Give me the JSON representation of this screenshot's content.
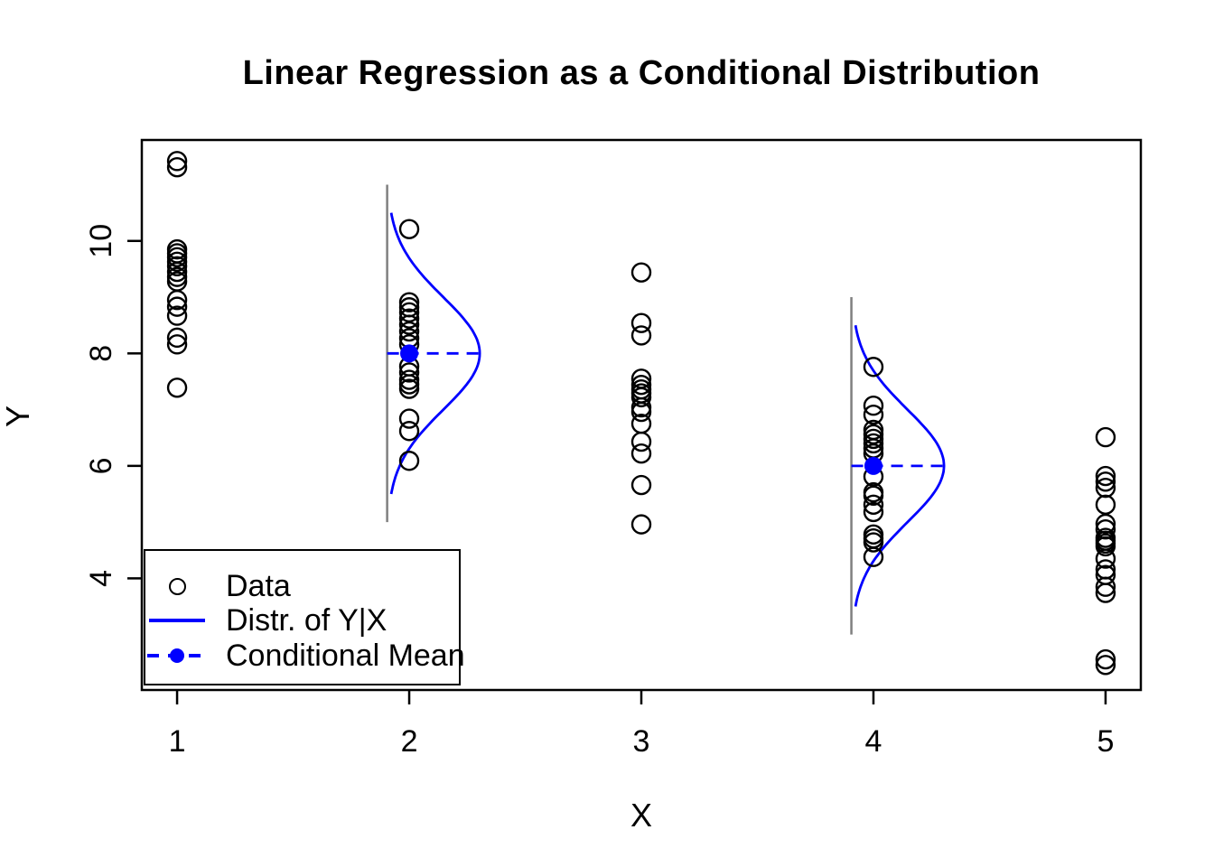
{
  "chart_data": {
    "type": "scatter",
    "title": "Linear Regression as a Conditional Distribution",
    "xlabel": "X",
    "ylabel": "Y",
    "x_ticks": [
      1,
      2,
      3,
      4,
      5
    ],
    "y_ticks": [
      4,
      6,
      8,
      10
    ],
    "xlim": [
      0.848,
      5.152
    ],
    "ylim": [
      2.015,
      11.795
    ],
    "grid": false,
    "colors": {
      "points": "#000000",
      "distribution": "#0000FF",
      "conditional_mean": "#0000FF",
      "guide_line": "#808080",
      "frame": "#000000",
      "background": "#FFFFFF"
    },
    "series": [
      {
        "x": 1,
        "y": [
          11.42,
          11.31,
          9.85,
          9.78,
          9.71,
          9.63,
          9.55,
          9.45,
          9.36,
          9.28,
          8.95,
          8.83,
          8.67,
          8.28,
          8.16,
          7.39
        ]
      },
      {
        "x": 2,
        "y": [
          10.21,
          8.91,
          8.82,
          8.73,
          8.62,
          8.51,
          8.39,
          8.27,
          8.16,
          7.77,
          7.66,
          7.53,
          7.45,
          7.37,
          6.84,
          6.62,
          6.09
        ]
      },
      {
        "x": 3,
        "y": [
          9.44,
          8.54,
          8.32,
          7.55,
          7.44,
          7.36,
          7.29,
          7.22,
          7.04,
          6.96,
          6.75,
          6.43,
          6.22,
          5.66,
          4.96
        ]
      },
      {
        "x": 4,
        "y": [
          7.76,
          7.07,
          6.91,
          6.64,
          6.56,
          6.48,
          6.4,
          6.31,
          6.22,
          5.81,
          5.53,
          5.47,
          5.31,
          5.18,
          4.78,
          4.71,
          4.64,
          4.38
        ]
      },
      {
        "x": 5,
        "y": [
          6.51,
          5.82,
          5.72,
          5.61,
          5.31,
          4.97,
          4.87,
          4.72,
          4.67,
          4.62,
          4.57,
          4.35,
          4.16,
          4.06,
          3.85,
          3.74,
          2.56,
          2.46
        ]
      }
    ],
    "distributions": [
      {
        "x": 2,
        "mean": 8,
        "sd": 1,
        "guide_offset": -0.095,
        "guide_halfspan": 3.0,
        "curve_halfspan": 2.5,
        "density_scale": 1.0
      },
      {
        "x": 4,
        "mean": 6,
        "sd": 1,
        "guide_offset": -0.095,
        "guide_halfspan": 3.0,
        "curve_halfspan": 2.5,
        "density_scale": 1.0
      }
    ],
    "conditional_means": [
      {
        "x": 2,
        "y": 8
      },
      {
        "x": 4,
        "y": 6
      }
    ],
    "legend": {
      "position": "bottom-left",
      "items": [
        {
          "label": "Data",
          "marker": "open-circle"
        },
        {
          "label": "Distr. of Y|X",
          "marker": "blue-solid-line"
        },
        {
          "label": "Conditional Mean",
          "marker": "blue-dashed-line-dot"
        }
      ]
    }
  }
}
